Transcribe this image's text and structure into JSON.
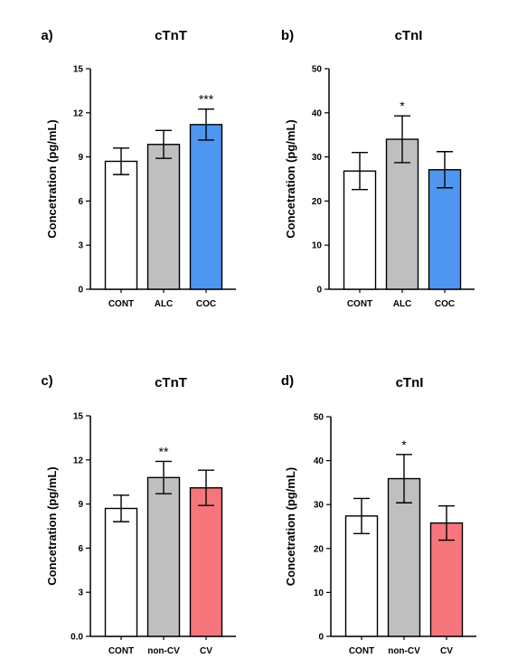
{
  "chart_data": [
    {
      "type": "bar",
      "panel": "a)",
      "title": "cTnT",
      "ylabel": "Concetration (pg/mL)",
      "ylim": [
        0,
        15
      ],
      "yticks": [
        "0",
        "3",
        "6",
        "9",
        "12",
        "15"
      ],
      "categories": [
        "CONT",
        "ALC",
        "COC"
      ],
      "values": [
        8.7,
        9.85,
        11.2
      ],
      "errors": [
        0.9,
        0.95,
        1.05
      ],
      "significance": [
        "",
        "",
        "***"
      ],
      "colors": [
        "#ffffff",
        "#bfbfbf",
        "#4f96f0"
      ]
    },
    {
      "type": "bar",
      "panel": "b)",
      "title": "cTnI",
      "ylabel": "Concetration (pg/mL)",
      "ylim": [
        0,
        50
      ],
      "yticks": [
        "0",
        "10",
        "20",
        "30",
        "40",
        "50"
      ],
      "categories": [
        "CONT",
        "ALC",
        "COC"
      ],
      "values": [
        26.8,
        34.0,
        27.1
      ],
      "errors": [
        4.2,
        5.3,
        4.1
      ],
      "significance": [
        "",
        "*",
        ""
      ],
      "colors": [
        "#ffffff",
        "#bfbfbf",
        "#4f96f0"
      ]
    },
    {
      "type": "bar",
      "panel": "c)",
      "title": "cTnT",
      "ylabel": "Concetration (pg/mL)",
      "ylim": [
        0,
        15
      ],
      "yticks": [
        "0.0",
        "3",
        "6",
        "9",
        "12",
        "15"
      ],
      "categories": [
        "CONT",
        "non-CV",
        "CV"
      ],
      "values": [
        8.7,
        10.8,
        10.1
      ],
      "errors": [
        0.9,
        1.1,
        1.2
      ],
      "significance": [
        "",
        "**",
        ""
      ],
      "colors": [
        "#ffffff",
        "#bfbfbf",
        "#f7767c"
      ]
    },
    {
      "type": "bar",
      "panel": "d)",
      "title": "cTnI",
      "ylabel": "Concetration (pg/mL)",
      "ylim": [
        0,
        50
      ],
      "yticks": [
        "0",
        "10",
        "20",
        "30",
        "40",
        "50"
      ],
      "categories": [
        "CONT",
        "non-CV",
        "CV"
      ],
      "values": [
        27.4,
        35.9,
        25.8
      ],
      "errors": [
        4.0,
        5.5,
        3.9
      ],
      "significance": [
        "",
        "*",
        ""
      ],
      "colors": [
        "#ffffff",
        "#bfbfbf",
        "#f7767c"
      ]
    }
  ]
}
